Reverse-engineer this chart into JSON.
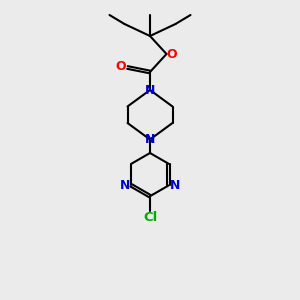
{
  "background_color": "#ebebeb",
  "bond_color": "#000000",
  "N_color": "#0000cc",
  "O_color": "#ff0000",
  "Cl_color": "#00aa00",
  "line_width": 1.5,
  "font_size": 9,
  "figsize": [
    3.0,
    3.0
  ],
  "dpi": 100,
  "xlim": [
    0,
    10
  ],
  "ylim": [
    0,
    10
  ]
}
